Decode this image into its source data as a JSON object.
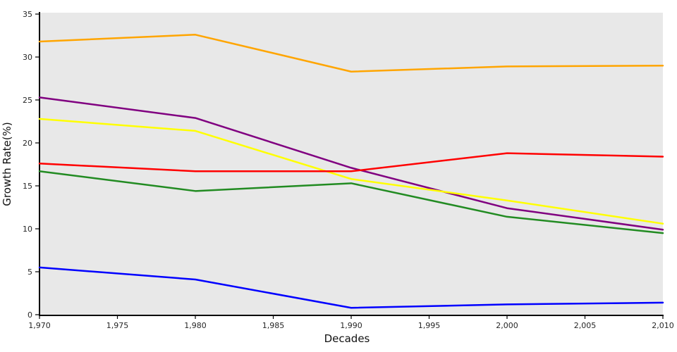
{
  "chart_data": {
    "type": "line",
    "title": "",
    "xlabel": "Decades",
    "ylabel": "Growth Rate(%)",
    "x": [
      1970,
      1980,
      1990,
      2000,
      2010
    ],
    "series": [
      {
        "name": "purple-line",
        "color": "#800080",
        "values": [
          25.3,
          22.9,
          17.1,
          12.4,
          9.9
        ]
      },
      {
        "name": "green-line",
        "color": "#228B22",
        "values": [
          16.7,
          14.4,
          15.3,
          11.4,
          9.5
        ]
      },
      {
        "name": "yellow-line",
        "color": "#FFFF00",
        "values": [
          22.8,
          21.4,
          15.8,
          13.3,
          10.6
        ]
      },
      {
        "name": "orange-line",
        "color": "#FFA500",
        "values": [
          31.8,
          32.6,
          28.3,
          28.9,
          29.0
        ]
      },
      {
        "name": "red-line",
        "color": "#FF0000",
        "values": [
          17.6,
          16.7,
          16.7,
          18.8,
          18.4
        ]
      },
      {
        "name": "blue-line",
        "color": "#0000FF",
        "values": [
          5.5,
          4.1,
          0.8,
          1.2,
          1.4
        ]
      }
    ],
    "x_ticks": [
      {
        "value": 1970,
        "label": "1,970"
      },
      {
        "value": 1975,
        "label": "1,975"
      },
      {
        "value": 1980,
        "label": "1,980"
      },
      {
        "value": 1985,
        "label": "1,985"
      },
      {
        "value": 1990,
        "label": "1,990"
      },
      {
        "value": 1995,
        "label": "1,995"
      },
      {
        "value": 2000,
        "label": "2,000"
      },
      {
        "value": 2005,
        "label": "2,005"
      },
      {
        "value": 2010,
        "label": "2,010"
      }
    ],
    "y_ticks": [
      {
        "value": 0,
        "label": "0"
      },
      {
        "value": 5,
        "label": "5"
      },
      {
        "value": 10,
        "label": "10"
      },
      {
        "value": 15,
        "label": "15"
      },
      {
        "value": 20,
        "label": "20"
      },
      {
        "value": 25,
        "label": "25"
      },
      {
        "value": 30,
        "label": "30"
      },
      {
        "value": 35,
        "label": "35"
      }
    ],
    "xlim": [
      1970,
      2010
    ],
    "ylim": [
      0,
      35
    ],
    "grid": false,
    "legend_position": "none",
    "plot_background": "#E8E8E8",
    "spine_color": "#000000",
    "line_width": 2.5
  }
}
